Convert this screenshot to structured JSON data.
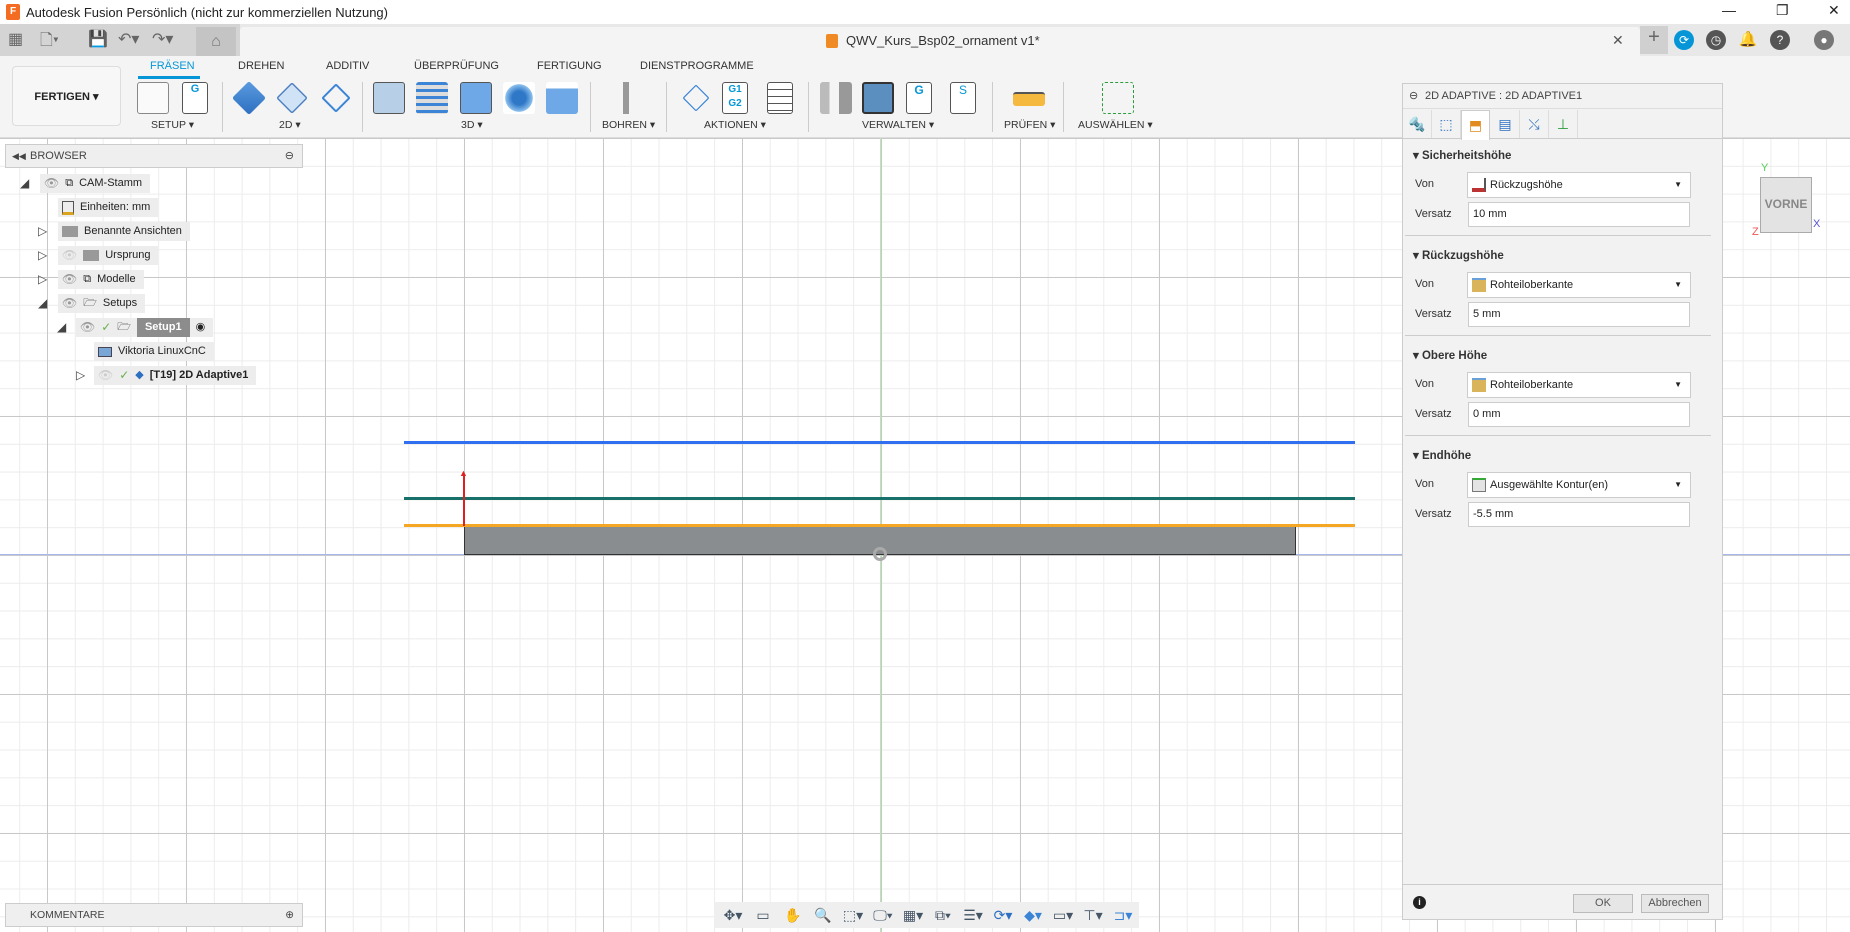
{
  "window": {
    "title": "Autodesk Fusion Persönlich (nicht zur kommerziellen Nutzung)",
    "document_title": "QWV_Kurs_Bsp02_ornament v1*"
  },
  "ribbon": {
    "workspace": "FERTIGEN ▾",
    "tabs": [
      "FRÄSEN",
      "DREHEN",
      "ADDITIV",
      "ÜBERPRÜFUNG",
      "FERTIGUNG",
      "DIENSTPROGRAMME"
    ],
    "active_tab": "FRÄSEN",
    "groups": [
      "SETUP ▾",
      "2D ▾",
      "3D ▾",
      "BOHREN ▾",
      "AKTIONEN ▾",
      "VERWALTEN ▾",
      "PRÜFEN ▾",
      "AUSWÄHLEN ▾"
    ],
    "g1g2": "G1\nG2"
  },
  "browser": {
    "title": "BROWSER",
    "items": [
      "CAM-Stamm",
      "Einheiten: mm",
      "Benannte Ansichten",
      "Ursprung",
      "Modelle",
      "Setups",
      "Setup1",
      "Viktoria LinuxCnC",
      "[T19] 2D Adaptive1"
    ]
  },
  "comments": {
    "title": "KOMMENTARE"
  },
  "viewcube": {
    "face": "VORNE",
    "axes": [
      "Y",
      "X",
      "Z"
    ]
  },
  "panel": {
    "title": "2D ADAPTIVE : 2D ADAPTIVE1",
    "active_tab_index": 2,
    "sections": [
      {
        "title": "Sicherheitshöhe",
        "from_label": "Von",
        "from": "Rückzugshöhe",
        "offset_label": "Versatz",
        "offset": "10 mm"
      },
      {
        "title": "Rückzugshöhe",
        "from_label": "Von",
        "from": "Rohteiloberkante",
        "offset_label": "Versatz",
        "offset": "5 mm"
      },
      {
        "title": "Obere Höhe",
        "from_label": "Von",
        "from": "Rohteiloberkante",
        "offset_label": "Versatz",
        "offset": "0 mm"
      },
      {
        "title": "Endhöhe",
        "from_label": "Von",
        "from": "Ausgewählte Kontur(en)",
        "offset_label": "Versatz",
        "offset": "-5.5 mm"
      }
    ],
    "ok": "OK",
    "cancel": "Abbrechen"
  },
  "colors": {
    "accent": "#0696d7",
    "clearance": "#2f6ff0",
    "retract": "#17706a",
    "top": "#f5a623",
    "stock": "#8a8d8f"
  }
}
